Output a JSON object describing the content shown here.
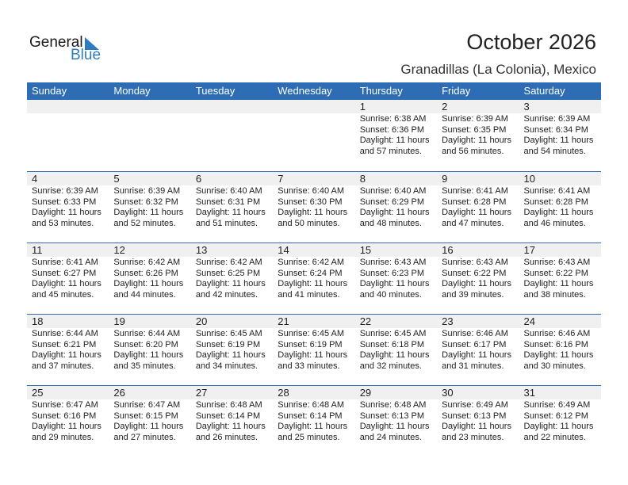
{
  "logo": {
    "line1": "General",
    "line2": "Blue"
  },
  "title": "October 2026",
  "location": "Granadillas (La Colonia), Mexico",
  "colors": {
    "header": "#2e6db4",
    "logo_blue": "#2e7cc0",
    "date_row": "#f0f0f0"
  },
  "weekdays": [
    "Sunday",
    "Monday",
    "Tuesday",
    "Wednesday",
    "Thursday",
    "Friday",
    "Saturday"
  ],
  "weeks": [
    [
      null,
      null,
      null,
      null,
      {
        "day": "1",
        "sunrise": "Sunrise: 6:38 AM",
        "sunset": "Sunset: 6:36 PM",
        "daylight1": "Daylight: 11 hours",
        "daylight2": "and 57 minutes."
      },
      {
        "day": "2",
        "sunrise": "Sunrise: 6:39 AM",
        "sunset": "Sunset: 6:35 PM",
        "daylight1": "Daylight: 11 hours",
        "daylight2": "and 56 minutes."
      },
      {
        "day": "3",
        "sunrise": "Sunrise: 6:39 AM",
        "sunset": "Sunset: 6:34 PM",
        "daylight1": "Daylight: 11 hours",
        "daylight2": "and 54 minutes."
      }
    ],
    [
      {
        "day": "4",
        "sunrise": "Sunrise: 6:39 AM",
        "sunset": "Sunset: 6:33 PM",
        "daylight1": "Daylight: 11 hours",
        "daylight2": "and 53 minutes."
      },
      {
        "day": "5",
        "sunrise": "Sunrise: 6:39 AM",
        "sunset": "Sunset: 6:32 PM",
        "daylight1": "Daylight: 11 hours",
        "daylight2": "and 52 minutes."
      },
      {
        "day": "6",
        "sunrise": "Sunrise: 6:40 AM",
        "sunset": "Sunset: 6:31 PM",
        "daylight1": "Daylight: 11 hours",
        "daylight2": "and 51 minutes."
      },
      {
        "day": "7",
        "sunrise": "Sunrise: 6:40 AM",
        "sunset": "Sunset: 6:30 PM",
        "daylight1": "Daylight: 11 hours",
        "daylight2": "and 50 minutes."
      },
      {
        "day": "8",
        "sunrise": "Sunrise: 6:40 AM",
        "sunset": "Sunset: 6:29 PM",
        "daylight1": "Daylight: 11 hours",
        "daylight2": "and 48 minutes."
      },
      {
        "day": "9",
        "sunrise": "Sunrise: 6:41 AM",
        "sunset": "Sunset: 6:28 PM",
        "daylight1": "Daylight: 11 hours",
        "daylight2": "and 47 minutes."
      },
      {
        "day": "10",
        "sunrise": "Sunrise: 6:41 AM",
        "sunset": "Sunset: 6:28 PM",
        "daylight1": "Daylight: 11 hours",
        "daylight2": "and 46 minutes."
      }
    ],
    [
      {
        "day": "11",
        "sunrise": "Sunrise: 6:41 AM",
        "sunset": "Sunset: 6:27 PM",
        "daylight1": "Daylight: 11 hours",
        "daylight2": "and 45 minutes."
      },
      {
        "day": "12",
        "sunrise": "Sunrise: 6:42 AM",
        "sunset": "Sunset: 6:26 PM",
        "daylight1": "Daylight: 11 hours",
        "daylight2": "and 44 minutes."
      },
      {
        "day": "13",
        "sunrise": "Sunrise: 6:42 AM",
        "sunset": "Sunset: 6:25 PM",
        "daylight1": "Daylight: 11 hours",
        "daylight2": "and 42 minutes."
      },
      {
        "day": "14",
        "sunrise": "Sunrise: 6:42 AM",
        "sunset": "Sunset: 6:24 PM",
        "daylight1": "Daylight: 11 hours",
        "daylight2": "and 41 minutes."
      },
      {
        "day": "15",
        "sunrise": "Sunrise: 6:43 AM",
        "sunset": "Sunset: 6:23 PM",
        "daylight1": "Daylight: 11 hours",
        "daylight2": "and 40 minutes."
      },
      {
        "day": "16",
        "sunrise": "Sunrise: 6:43 AM",
        "sunset": "Sunset: 6:22 PM",
        "daylight1": "Daylight: 11 hours",
        "daylight2": "and 39 minutes."
      },
      {
        "day": "17",
        "sunrise": "Sunrise: 6:43 AM",
        "sunset": "Sunset: 6:22 PM",
        "daylight1": "Daylight: 11 hours",
        "daylight2": "and 38 minutes."
      }
    ],
    [
      {
        "day": "18",
        "sunrise": "Sunrise: 6:44 AM",
        "sunset": "Sunset: 6:21 PM",
        "daylight1": "Daylight: 11 hours",
        "daylight2": "and 37 minutes."
      },
      {
        "day": "19",
        "sunrise": "Sunrise: 6:44 AM",
        "sunset": "Sunset: 6:20 PM",
        "daylight1": "Daylight: 11 hours",
        "daylight2": "and 35 minutes."
      },
      {
        "day": "20",
        "sunrise": "Sunrise: 6:45 AM",
        "sunset": "Sunset: 6:19 PM",
        "daylight1": "Daylight: 11 hours",
        "daylight2": "and 34 minutes."
      },
      {
        "day": "21",
        "sunrise": "Sunrise: 6:45 AM",
        "sunset": "Sunset: 6:19 PM",
        "daylight1": "Daylight: 11 hours",
        "daylight2": "and 33 minutes."
      },
      {
        "day": "22",
        "sunrise": "Sunrise: 6:45 AM",
        "sunset": "Sunset: 6:18 PM",
        "daylight1": "Daylight: 11 hours",
        "daylight2": "and 32 minutes."
      },
      {
        "day": "23",
        "sunrise": "Sunrise: 6:46 AM",
        "sunset": "Sunset: 6:17 PM",
        "daylight1": "Daylight: 11 hours",
        "daylight2": "and 31 minutes."
      },
      {
        "day": "24",
        "sunrise": "Sunrise: 6:46 AM",
        "sunset": "Sunset: 6:16 PM",
        "daylight1": "Daylight: 11 hours",
        "daylight2": "and 30 minutes."
      }
    ],
    [
      {
        "day": "25",
        "sunrise": "Sunrise: 6:47 AM",
        "sunset": "Sunset: 6:16 PM",
        "daylight1": "Daylight: 11 hours",
        "daylight2": "and 29 minutes."
      },
      {
        "day": "26",
        "sunrise": "Sunrise: 6:47 AM",
        "sunset": "Sunset: 6:15 PM",
        "daylight1": "Daylight: 11 hours",
        "daylight2": "and 27 minutes."
      },
      {
        "day": "27",
        "sunrise": "Sunrise: 6:48 AM",
        "sunset": "Sunset: 6:14 PM",
        "daylight1": "Daylight: 11 hours",
        "daylight2": "and 26 minutes."
      },
      {
        "day": "28",
        "sunrise": "Sunrise: 6:48 AM",
        "sunset": "Sunset: 6:14 PM",
        "daylight1": "Daylight: 11 hours",
        "daylight2": "and 25 minutes."
      },
      {
        "day": "29",
        "sunrise": "Sunrise: 6:48 AM",
        "sunset": "Sunset: 6:13 PM",
        "daylight1": "Daylight: 11 hours",
        "daylight2": "and 24 minutes."
      },
      {
        "day": "30",
        "sunrise": "Sunrise: 6:49 AM",
        "sunset": "Sunset: 6:13 PM",
        "daylight1": "Daylight: 11 hours",
        "daylight2": "and 23 minutes."
      },
      {
        "day": "31",
        "sunrise": "Sunrise: 6:49 AM",
        "sunset": "Sunset: 6:12 PM",
        "daylight1": "Daylight: 11 hours",
        "daylight2": "and 22 minutes."
      }
    ]
  ]
}
